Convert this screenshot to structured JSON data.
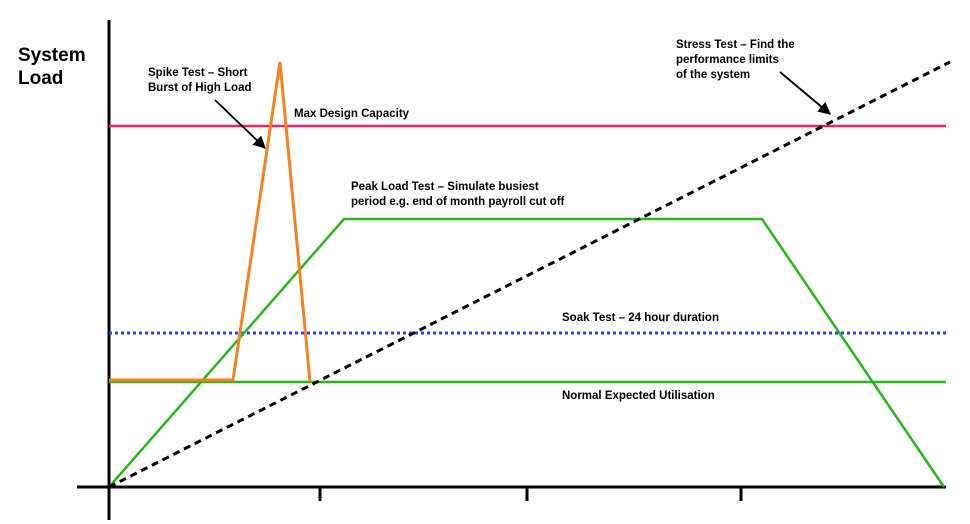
{
  "axis": {
    "y_label": "System\nLoad"
  },
  "labels": {
    "spike": "Spike Test – Short\nBurst of High Load",
    "max_capacity": "Max Design Capacity",
    "stress": "Stress Test – Find the\nperformance limits\nof the system",
    "peak": "Peak Load Test – Simulate busiest\nperiod e.g. end of month payroll cut off",
    "soak": "Soak Test – 24 hour duration",
    "normal": "Normal Expected Utilisation"
  },
  "colors": {
    "axis": "#000000",
    "max_capacity": "#e8256f",
    "spike": "#f58220",
    "peak": "#2db31f",
    "normal": "#2db31f",
    "soak": "#2a3ff0",
    "stress": "#000000"
  },
  "icons": {
    "pointer": "arrow-icon"
  }
}
